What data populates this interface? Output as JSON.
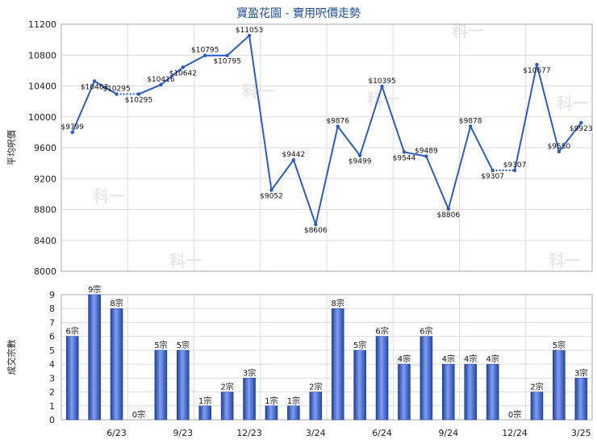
{
  "title": "寶盈花園 - 實用呎價走勢",
  "watermark": "科一",
  "chart_data": [
    {
      "type": "line",
      "ylabel": "平均呎價",
      "ylim": [
        8000,
        11200
      ],
      "yticks": [
        8000,
        8400,
        8800,
        9200,
        9600,
        10000,
        10400,
        10800,
        11200
      ],
      "grid": true,
      "color": "#2a5cc8",
      "series": [
        {
          "values": [
            9799,
            10463,
            10295,
            10295,
            10416,
            10642,
            10795,
            10795,
            11053,
            9052,
            9442,
            8606,
            9876,
            9499,
            10395,
            9544,
            9489,
            8806,
            9878,
            9307,
            9307,
            10677,
            9550,
            9923
          ],
          "labels": [
            "$9799",
            "$10463",
            "$10295",
            "$10295",
            "$10416",
            "$10642",
            "$10795",
            "$10795",
            "$11053",
            "$9052",
            "$9442",
            "$8606",
            "$9876",
            "$9499",
            "$10395",
            "$9544",
            "$9489",
            "$8806",
            "$9878",
            "$9307",
            "$9307",
            "$10677",
            "$9550",
            "$9923"
          ],
          "dotted_after_index": [
            2,
            19
          ]
        }
      ]
    },
    {
      "type": "bar",
      "ylabel": "成交宗數",
      "ylim": [
        0,
        9
      ],
      "yticks": [
        0,
        1,
        2,
        3,
        4,
        5,
        6,
        7,
        8,
        9
      ],
      "grid": true,
      "color": "#2f55c2",
      "x_tick_labels": [
        "6/23",
        "9/23",
        "12/23",
        "3/24",
        "6/24",
        "9/24",
        "12/24",
        "3/25"
      ],
      "x_tick_indices": [
        2,
        5,
        8,
        11,
        14,
        17,
        20,
        23
      ],
      "values": [
        6,
        9,
        8,
        0,
        5,
        5,
        1,
        2,
        3,
        1,
        1,
        2,
        8,
        5,
        6,
        4,
        6,
        4,
        4,
        4,
        0,
        2,
        5,
        3
      ],
      "labels": [
        "6宗",
        "9宗",
        "8宗",
        "0宗",
        "5宗",
        "5宗",
        "1宗",
        "2宗",
        "3宗",
        "1宗",
        "1宗",
        "2宗",
        "8宗",
        "5宗",
        "6宗",
        "4宗",
        "6宗",
        "4宗",
        "4宗",
        "4宗",
        "0宗",
        "2宗",
        "5宗",
        "3宗"
      ]
    }
  ]
}
